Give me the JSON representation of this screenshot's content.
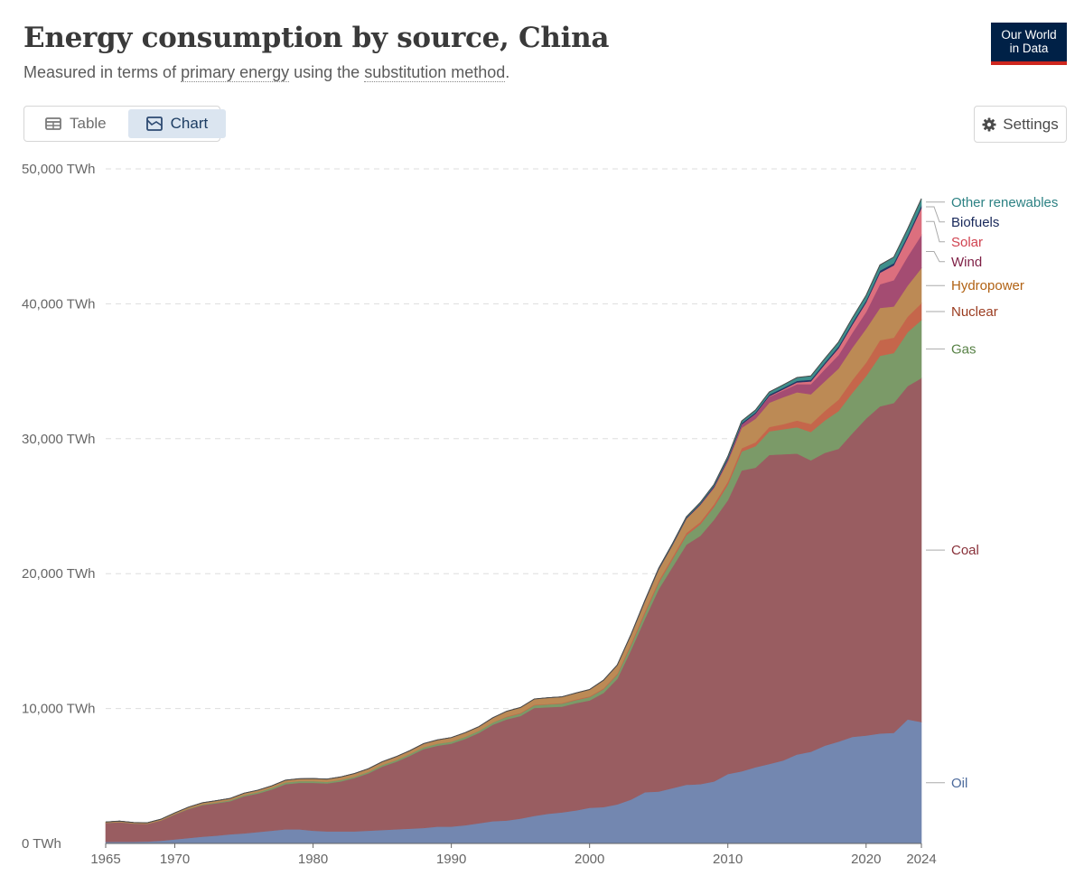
{
  "header": {
    "title": "Energy consumption by source, China",
    "subtitle_prefix": "Measured in terms of ",
    "subtitle_link1": "primary energy",
    "subtitle_middle": " using the ",
    "subtitle_link2": "substitution method",
    "subtitle_suffix": ".",
    "logo_line1": "Our World",
    "logo_line2": "in Data"
  },
  "tabs": [
    {
      "label": "Table",
      "icon": "table-icon",
      "active": false
    },
    {
      "label": "Chart",
      "icon": "chart-icon",
      "active": true
    }
  ],
  "settings": {
    "label": "Settings",
    "icon": "gear-icon"
  },
  "colors": {
    "Oil": "#7387b0",
    "Coal": "#995d61",
    "Gas": "#7b9a68",
    "Nuclear": "#c5664b",
    "Hydropower": "#bc8a55",
    "Wind": "#a44c72",
    "Solar": "#dc6f7e",
    "Biofuels": "#253565",
    "Other renewables": "#3e8f8c"
  },
  "label_colors": {
    "Oil": "#4c6a9c",
    "Coal": "#883039",
    "Gas": "#578145",
    "Nuclear": "#9a3b1f",
    "Hydropower": "#b16214",
    "Wind": "#7e1f45",
    "Solar": "#d0424f",
    "Biofuels": "#18285a",
    "Other renewables": "#2c8183"
  },
  "chart_data": {
    "type": "area",
    "stacked": true,
    "title": "Energy consumption by source, China",
    "y_unit": "TWh",
    "ylim": [
      0,
      50000
    ],
    "y_ticks": [
      "0 TWh",
      "10,000 TWh",
      "20,000 TWh",
      "30,000 TWh",
      "40,000 TWh",
      "50,000 TWh"
    ],
    "y_tick_values": [
      0,
      10000,
      20000,
      30000,
      40000,
      50000
    ],
    "xlim": [
      1965,
      2024
    ],
    "x_ticks": [
      "1965",
      "1970",
      "1980",
      "1990",
      "2000",
      "2010",
      "2020",
      "2024"
    ],
    "x_tick_values": [
      1965,
      1970,
      1980,
      1990,
      2000,
      2010,
      2020,
      2024
    ],
    "x": [
      1965,
      1966,
      1967,
      1968,
      1969,
      1970,
      1971,
      1972,
      1973,
      1974,
      1975,
      1976,
      1977,
      1978,
      1979,
      1980,
      1981,
      1982,
      1983,
      1984,
      1985,
      1986,
      1987,
      1988,
      1989,
      1990,
      1991,
      1992,
      1993,
      1994,
      1995,
      1996,
      1997,
      1998,
      1999,
      2000,
      2001,
      2002,
      2003,
      2004,
      2005,
      2006,
      2007,
      2008,
      2009,
      2010,
      2011,
      2012,
      2013,
      2014,
      2015,
      2016,
      2017,
      2018,
      2019,
      2020,
      2021,
      2022,
      2023,
      2024
    ],
    "series": [
      {
        "name": "Oil",
        "values": [
          120,
          130,
          130,
          150,
          200,
          300,
          400,
          500,
          580,
          680,
          750,
          850,
          950,
          1050,
          1050,
          950,
          900,
          900,
          900,
          950,
          1000,
          1050,
          1100,
          1150,
          1250,
          1250,
          1350,
          1500,
          1650,
          1700,
          1850,
          2050,
          2200,
          2300,
          2450,
          2650,
          2700,
          2900,
          3250,
          3800,
          3850,
          4100,
          4350,
          4400,
          4600,
          5150,
          5350,
          5650,
          5900,
          6150,
          6600,
          6800,
          7250,
          7550,
          7900,
          8000,
          8150,
          8200,
          9200,
          9000
        ]
      },
      {
        "name": "Coal",
        "values": [
          1400,
          1450,
          1350,
          1300,
          1500,
          1850,
          2150,
          2350,
          2400,
          2450,
          2750,
          2850,
          3050,
          3350,
          3450,
          3550,
          3550,
          3700,
          3950,
          4250,
          4700,
          5000,
          5400,
          5850,
          6000,
          6150,
          6400,
          6700,
          7150,
          7500,
          7600,
          8000,
          7900,
          7850,
          7950,
          7950,
          8450,
          9300,
          11100,
          12850,
          15000,
          16400,
          17800,
          18400,
          19400,
          20300,
          22300,
          22200,
          22900,
          22700,
          22300,
          21600,
          21700,
          21700,
          22500,
          23500,
          24250,
          24450,
          24700,
          25500
        ]
      },
      {
        "name": "Gas",
        "values": [
          10,
          10,
          10,
          10,
          20,
          30,
          40,
          50,
          60,
          80,
          90,
          110,
          120,
          130,
          130,
          130,
          120,
          110,
          110,
          110,
          120,
          130,
          130,
          140,
          150,
          150,
          160,
          160,
          170,
          180,
          190,
          200,
          210,
          220,
          230,
          260,
          290,
          320,
          360,
          420,
          490,
          580,
          700,
          850,
          950,
          1150,
          1400,
          1600,
          1750,
          1850,
          1950,
          2100,
          2400,
          2800,
          3000,
          3150,
          3750,
          3700,
          4000,
          4300
        ]
      },
      {
        "name": "Nuclear",
        "values": [
          0,
          0,
          0,
          0,
          0,
          0,
          0,
          0,
          0,
          0,
          0,
          0,
          0,
          0,
          0,
          0,
          0,
          0,
          0,
          0,
          0,
          0,
          0,
          0,
          0,
          0,
          0,
          0,
          0,
          40,
          40,
          40,
          40,
          40,
          50,
          50,
          50,
          70,
          120,
          140,
          140,
          160,
          170,
          180,
          200,
          220,
          250,
          280,
          320,
          380,
          500,
          600,
          700,
          850,
          950,
          1000,
          1150,
          1150,
          1150,
          1250
        ]
      },
      {
        "name": "Hydropower",
        "values": [
          60,
          70,
          70,
          70,
          80,
          90,
          110,
          120,
          130,
          130,
          140,
          140,
          150,
          160,
          170,
          180,
          200,
          220,
          230,
          230,
          240,
          250,
          250,
          260,
          280,
          300,
          300,
          300,
          350,
          380,
          400,
          420,
          450,
          460,
          470,
          500,
          600,
          620,
          640,
          750,
          850,
          900,
          1050,
          1250,
          1200,
          1500,
          1500,
          1750,
          1800,
          2000,
          2100,
          2200,
          2200,
          2300,
          2400,
          2500,
          2400,
          2300,
          2300,
          2600
        ]
      },
      {
        "name": "Wind",
        "values": [
          0,
          0,
          0,
          0,
          0,
          0,
          0,
          0,
          0,
          0,
          0,
          0,
          0,
          0,
          0,
          0,
          0,
          0,
          0,
          0,
          0,
          0,
          0,
          0,
          0,
          0,
          0,
          0,
          0,
          0,
          0,
          0,
          0,
          0,
          0,
          0,
          0,
          0,
          0,
          0,
          0,
          0,
          20,
          40,
          80,
          150,
          250,
          350,
          450,
          500,
          600,
          750,
          900,
          1000,
          1100,
          1250,
          1750,
          1950,
          2150,
          2450
        ]
      },
      {
        "name": "Solar",
        "values": [
          0,
          0,
          0,
          0,
          0,
          0,
          0,
          0,
          0,
          0,
          0,
          0,
          0,
          0,
          0,
          0,
          0,
          0,
          0,
          0,
          0,
          0,
          0,
          0,
          0,
          0,
          0,
          0,
          0,
          0,
          0,
          0,
          0,
          0,
          0,
          0,
          0,
          0,
          0,
          0,
          0,
          0,
          0,
          0,
          0,
          0,
          10,
          20,
          40,
          80,
          130,
          200,
          350,
          500,
          600,
          700,
          850,
          1100,
          1400,
          2000
        ]
      },
      {
        "name": "Biofuels",
        "values": [
          0,
          0,
          0,
          0,
          0,
          0,
          0,
          0,
          0,
          0,
          0,
          0,
          0,
          0,
          0,
          0,
          0,
          0,
          0,
          0,
          0,
          0,
          0,
          0,
          0,
          0,
          0,
          0,
          0,
          0,
          0,
          0,
          0,
          0,
          0,
          0,
          0,
          10,
          20,
          30,
          40,
          50,
          60,
          70,
          80,
          90,
          100,
          100,
          110,
          110,
          110,
          120,
          130,
          140,
          150,
          150,
          160,
          160,
          170,
          180
        ]
      },
      {
        "name": "Other renewables",
        "values": [
          0,
          0,
          0,
          0,
          0,
          0,
          0,
          0,
          0,
          0,
          0,
          0,
          0,
          0,
          0,
          0,
          0,
          0,
          0,
          0,
          0,
          0,
          0,
          0,
          0,
          0,
          0,
          0,
          0,
          0,
          0,
          0,
          0,
          0,
          0,
          0,
          10,
          10,
          20,
          30,
          40,
          50,
          60,
          80,
          100,
          130,
          150,
          180,
          200,
          220,
          250,
          280,
          300,
          320,
          350,
          380,
          420,
          450,
          480,
          520
        ]
      }
    ]
  }
}
